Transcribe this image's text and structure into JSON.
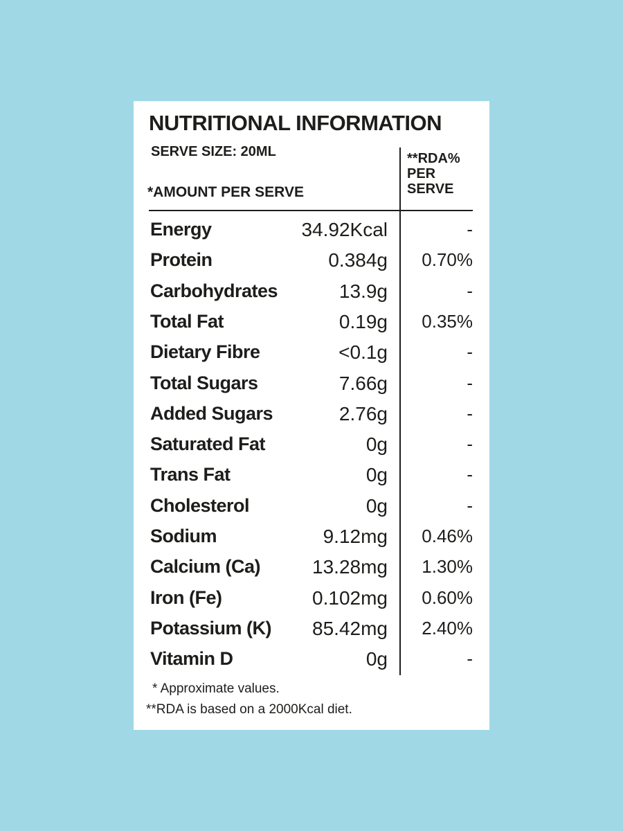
{
  "header": {
    "title": "NUTRITIONAL INFORMATION",
    "serve_size": "SERVE SIZE: 20ML",
    "amount_label": "*AMOUNT PER SERVE",
    "rda_label": [
      "**RDA%",
      "PER",
      "SERVE"
    ]
  },
  "table": {
    "rows": [
      [
        "Energy",
        "34.92Kcal",
        "-"
      ],
      [
        "Protein",
        "0.384g",
        "0.70%"
      ],
      [
        "Carbohydrates",
        "13.9g",
        "-"
      ],
      [
        "Total Fat",
        "0.19g",
        "0.35%"
      ],
      [
        "Dietary Fibre",
        "<0.1g",
        "-"
      ],
      [
        "Total Sugars",
        "7.66g",
        "-"
      ],
      [
        "Added Sugars",
        "2.76g",
        "-"
      ],
      [
        "Saturated Fat",
        "0g",
        "-"
      ],
      [
        "Trans Fat",
        "0g",
        "-"
      ],
      [
        "Cholesterol",
        "0g",
        "-"
      ],
      [
        "Sodium",
        "9.12mg",
        "0.46%"
      ],
      [
        "Calcium (Ca)",
        "13.28mg",
        "1.30%"
      ],
      [
        "Iron (Fe)",
        "0.102mg",
        "0.60%"
      ],
      [
        "Potassium (K)",
        "85.42mg",
        "2.40%"
      ],
      [
        "Vitamin D",
        "0g",
        "-"
      ]
    ]
  },
  "footnotes": [
    "* Approximate values.",
    "**RDA is based on a 2000Kcal diet."
  ]
}
